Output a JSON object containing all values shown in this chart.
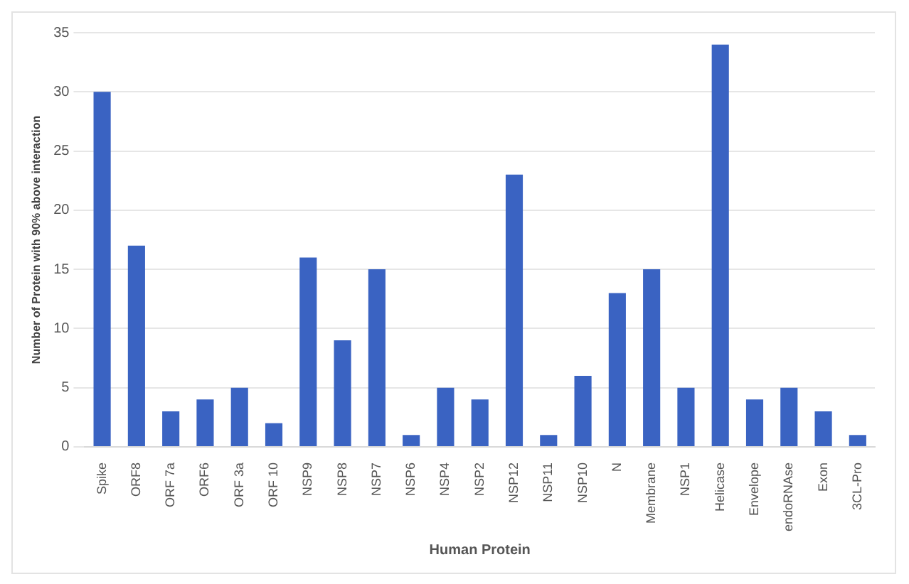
{
  "chart_data": {
    "type": "bar",
    "xlabel": "Human Protein",
    "ylabel": "Number of Protein with 90% above interaction",
    "categories": [
      "Spike",
      "ORF8",
      "ORF 7a",
      "ORF6",
      "ORF 3a",
      "ORF 10",
      "NSP9",
      "NSP8",
      "NSP7",
      "NSP6",
      "NSP4",
      "NSP2",
      "NSP12",
      "NSP11",
      "NSP10",
      "N",
      "Membrane",
      "NSP1",
      "Helicase",
      "Envelope",
      "endoRNAse",
      "Exon",
      "3CL-Pro"
    ],
    "values": [
      30,
      17,
      3,
      4,
      5,
      2,
      16,
      9,
      15,
      1,
      5,
      4,
      23,
      1,
      6,
      13,
      15,
      5,
      34,
      4,
      5,
      3,
      1
    ],
    "color": "#3a63c2",
    "ylim": [
      0,
      35
    ],
    "yticks": [
      0,
      5,
      10,
      15,
      20,
      25,
      30,
      35
    ],
    "grid": "y"
  }
}
